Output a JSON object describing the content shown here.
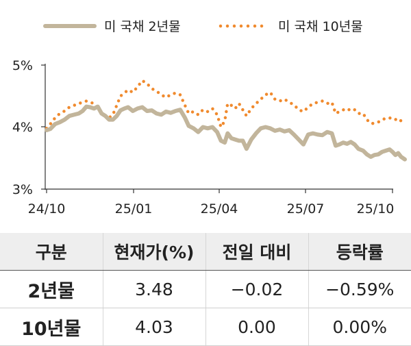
{
  "chart_data": {
    "type": "line",
    "x_ticks": [
      "24/10",
      "25/01",
      "25/04",
      "25/07",
      "25/10"
    ],
    "y_ticks": [
      "5%",
      "4%",
      "3%"
    ],
    "ylim": [
      3,
      5
    ],
    "legend_position": "top",
    "series": [
      {
        "name": "미 국채 2년물",
        "style": "solid",
        "color": "#c2b59b",
        "points": [
          [
            "2024-10-01",
            3.95
          ],
          [
            "2024-10-05",
            3.97
          ],
          [
            "2024-10-10",
            4.05
          ],
          [
            "2024-10-15",
            4.08
          ],
          [
            "2024-10-20",
            4.12
          ],
          [
            "2024-10-25",
            4.18
          ],
          [
            "2024-10-30",
            4.2
          ],
          [
            "2024-11-04",
            4.22
          ],
          [
            "2024-11-08",
            4.26
          ],
          [
            "2024-11-12",
            4.33
          ],
          [
            "2024-11-16",
            4.32
          ],
          [
            "2024-11-20",
            4.3
          ],
          [
            "2024-11-24",
            4.33
          ],
          [
            "2024-11-28",
            4.22
          ],
          [
            "2024-12-02",
            4.18
          ],
          [
            "2024-12-06",
            4.12
          ],
          [
            "2024-12-10",
            4.12
          ],
          [
            "2024-12-14",
            4.18
          ],
          [
            "2024-12-18",
            4.27
          ],
          [
            "2024-12-22",
            4.3
          ],
          [
            "2024-12-26",
            4.32
          ],
          [
            "2024-12-31",
            4.26
          ],
          [
            "2025-01-05",
            4.3
          ],
          [
            "2025-01-10",
            4.32
          ],
          [
            "2025-01-15",
            4.26
          ],
          [
            "2025-01-20",
            4.27
          ],
          [
            "2025-01-25",
            4.22
          ],
          [
            "2025-01-30",
            4.2
          ],
          [
            "2025-02-04",
            4.25
          ],
          [
            "2025-02-09",
            4.23
          ],
          [
            "2025-02-14",
            4.26
          ],
          [
            "2025-02-19",
            4.28
          ],
          [
            "2025-02-24",
            4.15
          ],
          [
            "2025-02-28",
            4.02
          ],
          [
            "2025-03-05",
            3.98
          ],
          [
            "2025-03-10",
            3.92
          ],
          [
            "2025-03-15",
            4.0
          ],
          [
            "2025-03-20",
            3.98
          ],
          [
            "2025-03-25",
            4.0
          ],
          [
            "2025-03-30",
            3.92
          ],
          [
            "2025-04-03",
            3.78
          ],
          [
            "2025-04-07",
            3.75
          ],
          [
            "2025-04-10",
            3.9
          ],
          [
            "2025-04-14",
            3.82
          ],
          [
            "2025-04-18",
            3.8
          ],
          [
            "2025-04-22",
            3.78
          ],
          [
            "2025-04-26",
            3.78
          ],
          [
            "2025-04-30",
            3.65
          ],
          [
            "2025-05-05",
            3.8
          ],
          [
            "2025-05-10",
            3.9
          ],
          [
            "2025-05-15",
            3.98
          ],
          [
            "2025-05-20",
            4.0
          ],
          [
            "2025-05-25",
            3.98
          ],
          [
            "2025-05-30",
            3.94
          ],
          [
            "2025-06-04",
            3.96
          ],
          [
            "2025-06-09",
            3.93
          ],
          [
            "2025-06-14",
            3.95
          ],
          [
            "2025-06-19",
            3.88
          ],
          [
            "2025-06-24",
            3.8
          ],
          [
            "2025-06-29",
            3.72
          ],
          [
            "2025-07-04",
            3.88
          ],
          [
            "2025-07-09",
            3.9
          ],
          [
            "2025-07-14",
            3.88
          ],
          [
            "2025-07-19",
            3.87
          ],
          [
            "2025-07-24",
            3.92
          ],
          [
            "2025-07-29",
            3.9
          ],
          [
            "2025-08-02",
            3.7
          ],
          [
            "2025-08-06",
            3.72
          ],
          [
            "2025-08-10",
            3.75
          ],
          [
            "2025-08-14",
            3.73
          ],
          [
            "2025-08-18",
            3.76
          ],
          [
            "2025-08-22",
            3.72
          ],
          [
            "2025-08-26",
            3.65
          ],
          [
            "2025-08-31",
            3.62
          ],
          [
            "2025-09-04",
            3.56
          ],
          [
            "2025-09-08",
            3.52
          ],
          [
            "2025-09-12",
            3.55
          ],
          [
            "2025-09-16",
            3.56
          ],
          [
            "2025-09-20",
            3.6
          ],
          [
            "2025-09-24",
            3.62
          ],
          [
            "2025-09-28",
            3.64
          ],
          [
            "2025-10-01",
            3.6
          ],
          [
            "2025-10-04",
            3.55
          ],
          [
            "2025-10-07",
            3.58
          ],
          [
            "2025-10-10",
            3.52
          ],
          [
            "2025-10-14",
            3.48
          ]
        ]
      },
      {
        "name": "미 국채 10년물",
        "style": "dotted",
        "color": "#f08a2e",
        "points": [
          [
            "2024-10-01",
            3.98
          ],
          [
            "2024-10-05",
            4.05
          ],
          [
            "2024-10-10",
            4.15
          ],
          [
            "2024-10-15",
            4.22
          ],
          [
            "2024-10-20",
            4.26
          ],
          [
            "2024-10-25",
            4.32
          ],
          [
            "2024-10-30",
            4.35
          ],
          [
            "2024-11-04",
            4.38
          ],
          [
            "2024-11-08",
            4.4
          ],
          [
            "2024-11-12",
            4.42
          ],
          [
            "2024-11-16",
            4.4
          ],
          [
            "2024-11-20",
            4.38
          ],
          [
            "2024-11-24",
            4.32
          ],
          [
            "2024-11-28",
            4.22
          ],
          [
            "2024-12-02",
            4.18
          ],
          [
            "2024-12-06",
            4.15
          ],
          [
            "2024-12-10",
            4.2
          ],
          [
            "2024-12-14",
            4.35
          ],
          [
            "2024-12-18",
            4.5
          ],
          [
            "2024-12-22",
            4.55
          ],
          [
            "2024-12-26",
            4.6
          ],
          [
            "2024-12-31",
            4.56
          ],
          [
            "2025-01-05",
            4.65
          ],
          [
            "2025-01-10",
            4.75
          ],
          [
            "2025-01-15",
            4.7
          ],
          [
            "2025-01-20",
            4.62
          ],
          [
            "2025-01-25",
            4.58
          ],
          [
            "2025-01-30",
            4.52
          ],
          [
            "2025-02-04",
            4.48
          ],
          [
            "2025-02-09",
            4.52
          ],
          [
            "2025-02-14",
            4.55
          ],
          [
            "2025-02-19",
            4.52
          ],
          [
            "2025-02-24",
            4.35
          ],
          [
            "2025-02-28",
            4.22
          ],
          [
            "2025-03-05",
            4.25
          ],
          [
            "2025-03-10",
            4.2
          ],
          [
            "2025-03-15",
            4.28
          ],
          [
            "2025-03-20",
            4.25
          ],
          [
            "2025-03-25",
            4.3
          ],
          [
            "2025-03-30",
            4.2
          ],
          [
            "2025-04-03",
            4.0
          ],
          [
            "2025-04-07",
            4.1
          ],
          [
            "2025-04-10",
            4.38
          ],
          [
            "2025-04-14",
            4.35
          ],
          [
            "2025-04-18",
            4.3
          ],
          [
            "2025-04-22",
            4.38
          ],
          [
            "2025-04-26",
            4.28
          ],
          [
            "2025-04-30",
            4.18
          ],
          [
            "2025-05-05",
            4.3
          ],
          [
            "2025-05-10",
            4.38
          ],
          [
            "2025-05-15",
            4.45
          ],
          [
            "2025-05-20",
            4.52
          ],
          [
            "2025-05-25",
            4.56
          ],
          [
            "2025-05-30",
            4.45
          ],
          [
            "2025-06-04",
            4.42
          ],
          [
            "2025-06-09",
            4.45
          ],
          [
            "2025-06-14",
            4.4
          ],
          [
            "2025-06-19",
            4.36
          ],
          [
            "2025-06-24",
            4.28
          ],
          [
            "2025-06-29",
            4.25
          ],
          [
            "2025-07-04",
            4.32
          ],
          [
            "2025-07-09",
            4.38
          ],
          [
            "2025-07-14",
            4.4
          ],
          [
            "2025-07-19",
            4.42
          ],
          [
            "2025-07-24",
            4.38
          ],
          [
            "2025-07-29",
            4.4
          ],
          [
            "2025-08-02",
            4.22
          ],
          [
            "2025-08-06",
            4.25
          ],
          [
            "2025-08-10",
            4.28
          ],
          [
            "2025-08-14",
            4.26
          ],
          [
            "2025-08-18",
            4.3
          ],
          [
            "2025-08-22",
            4.28
          ],
          [
            "2025-08-26",
            4.22
          ],
          [
            "2025-08-31",
            4.22
          ],
          [
            "2025-09-04",
            4.12
          ],
          [
            "2025-09-08",
            4.06
          ],
          [
            "2025-09-12",
            4.06
          ],
          [
            "2025-09-16",
            4.08
          ],
          [
            "2025-09-20",
            4.12
          ],
          [
            "2025-09-24",
            4.14
          ],
          [
            "2025-09-28",
            4.15
          ],
          [
            "2025-10-01",
            4.12
          ],
          [
            "2025-10-04",
            4.12
          ],
          [
            "2025-10-07",
            4.14
          ],
          [
            "2025-10-10",
            4.1
          ],
          [
            "2025-10-14",
            4.03
          ]
        ]
      }
    ]
  },
  "table": {
    "headers": [
      "구분",
      "현재가(%)",
      "전일 대비",
      "등락률"
    ],
    "rows": [
      {
        "name": "2년물",
        "price": "3.48",
        "change": "−0.02",
        "pct": "−0.59%"
      },
      {
        "name": "10년물",
        "price": "4.03",
        "change": "0.00",
        "pct": "0.00%"
      }
    ]
  }
}
